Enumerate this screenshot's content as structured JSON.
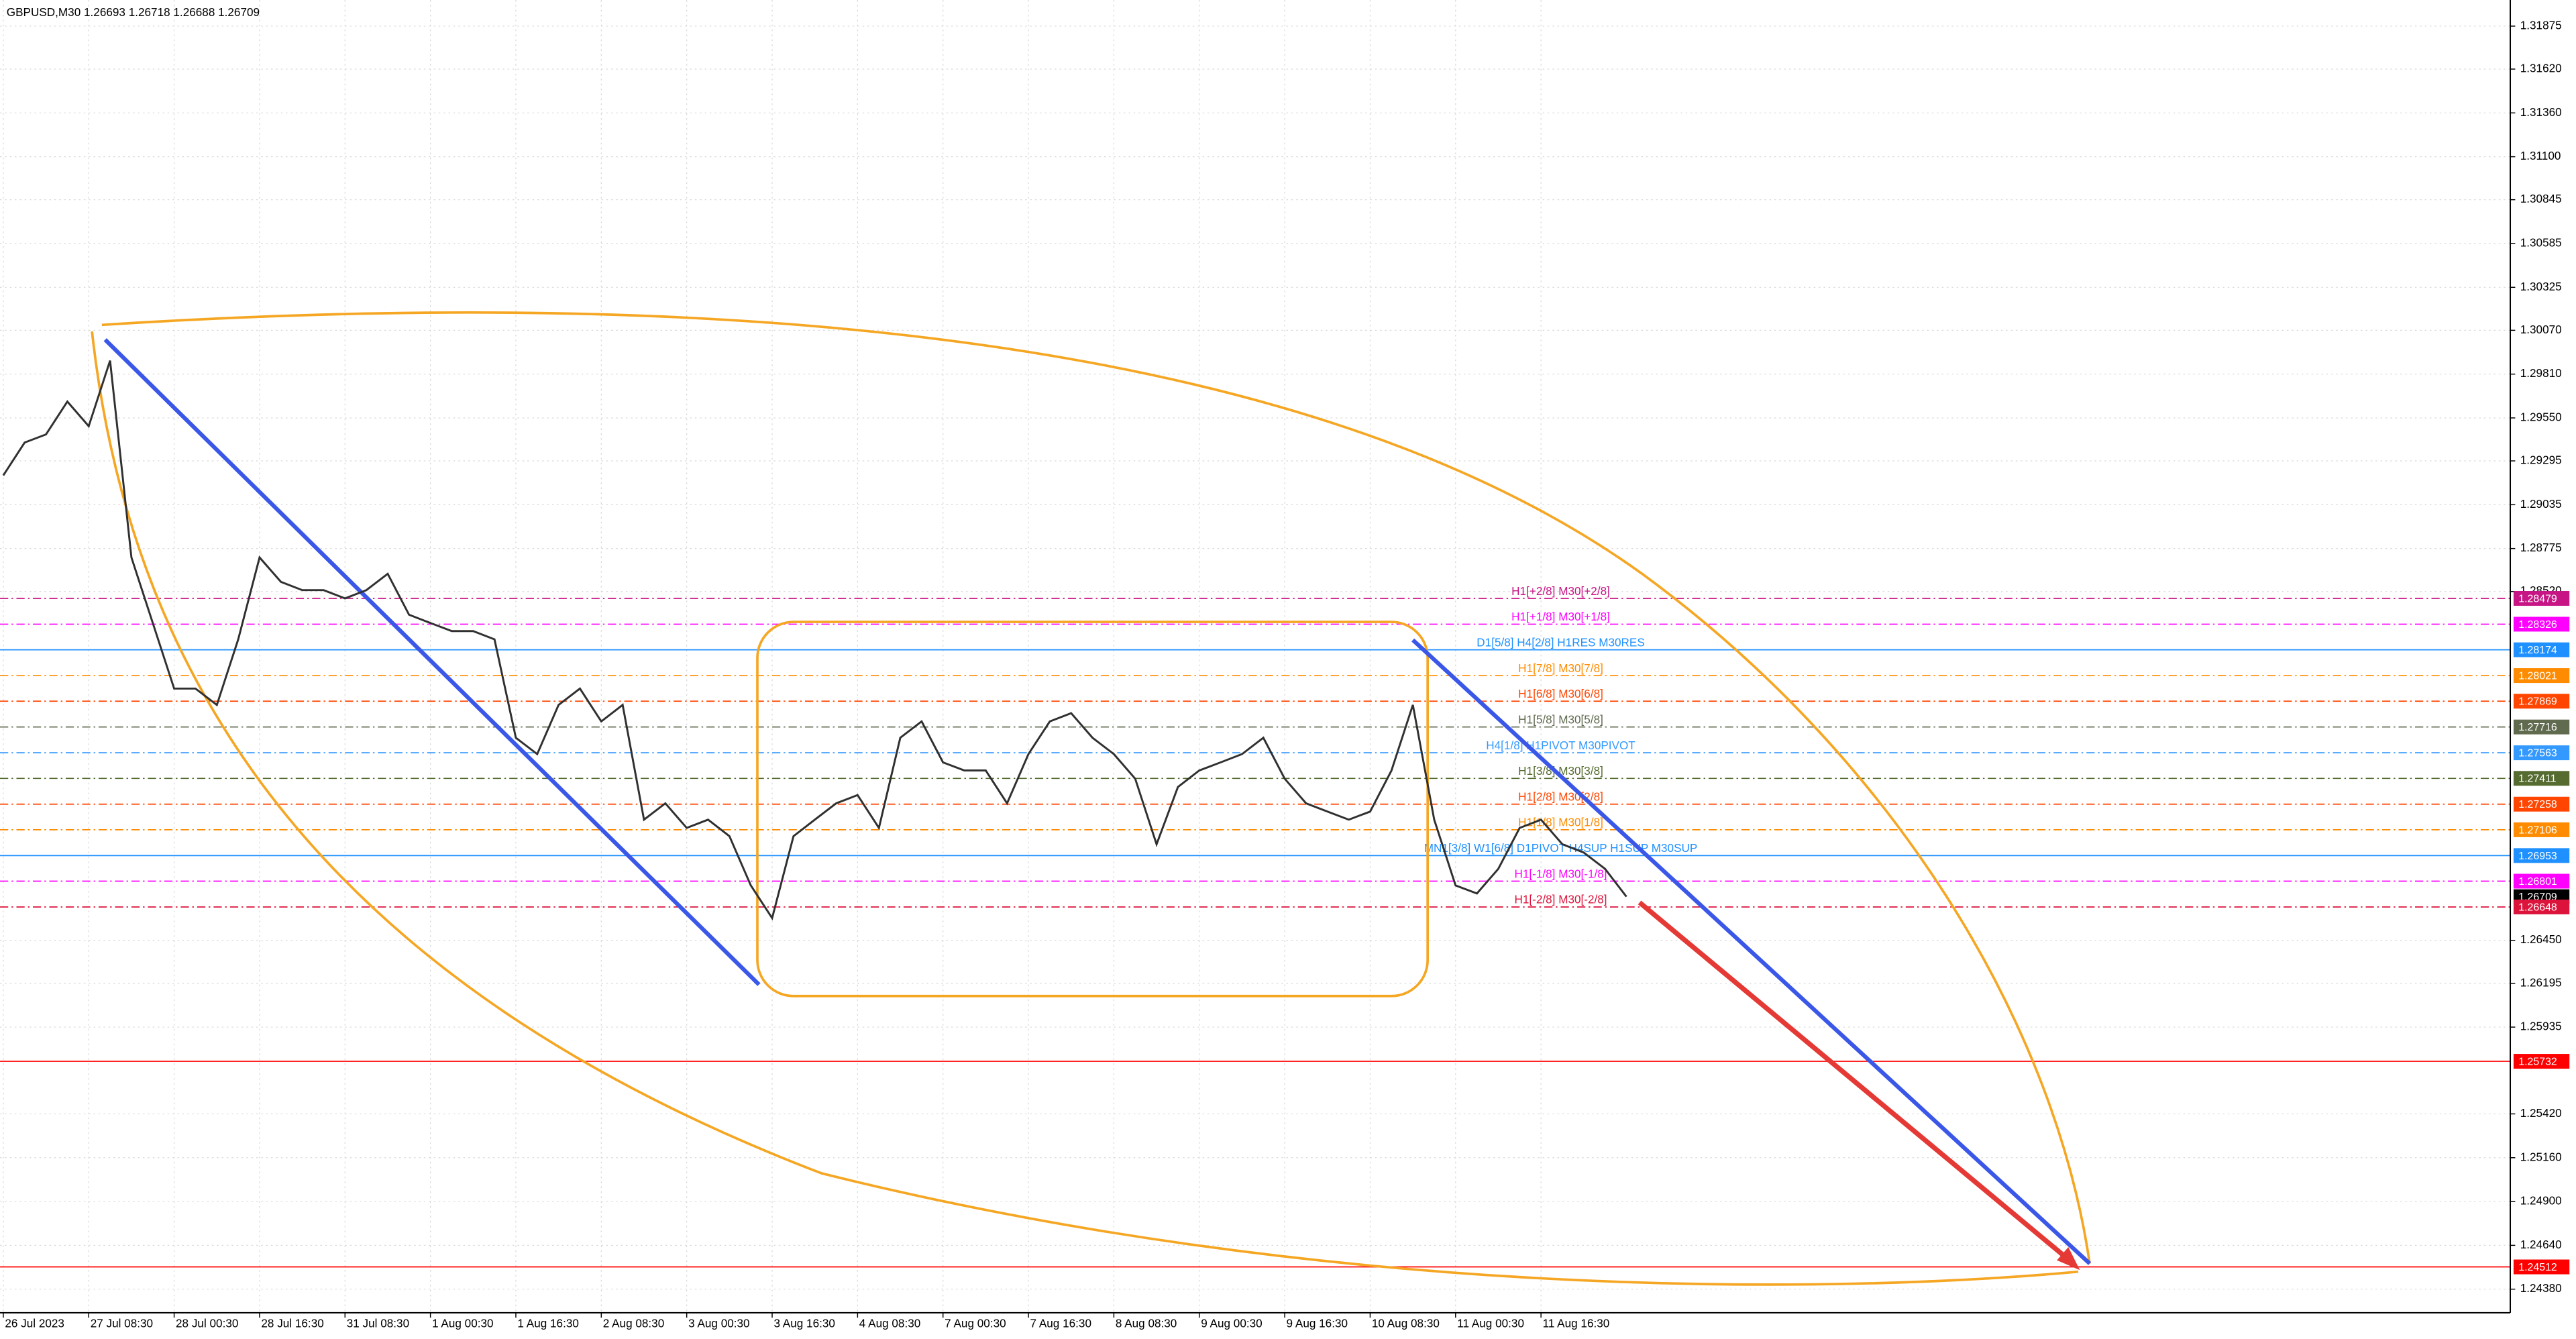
{
  "chart_data": {
    "type": "line",
    "title": "GBPUSD,M30  1.26693 1.26718 1.26688 1.26709",
    "color": "#303030",
    "grid": true,
    "ylim": [
      1.2424,
      1.3203
    ],
    "yticks": [
      1.31875,
      {
        "value": 1.3162,
        "label": "1.31620"
      },
      {
        "value": 1.3136,
        "label": "1.31360"
      },
      {
        "value": 1.311,
        "label": "1.31100"
      },
      1.30845,
      1.30585,
      1.30325,
      {
        "value": 1.3007,
        "label": "1.30070"
      },
      {
        "value": 1.2981,
        "label": "1.29810"
      },
      {
        "value": 1.2955,
        "label": "1.29550"
      },
      1.29295,
      1.29035,
      1.28775,
      {
        "value": 1.2852,
        "label": "1.28520"
      },
      {
        "value": 1.2645,
        "label": "1.26450"
      },
      1.26195,
      1.25935,
      {
        "value": 1.2542,
        "label": "1.25420"
      },
      {
        "value": 1.2516,
        "label": "1.25160"
      },
      {
        "value": 1.249,
        "label": "1.24900"
      },
      {
        "value": 1.2464,
        "label": "1.24640"
      },
      {
        "value": 1.2438,
        "label": "1.24380"
      }
    ],
    "categories": [
      "26 Jul 2023",
      null,
      null,
      null,
      "27 Jul 08:30",
      null,
      null,
      null,
      "28 Jul 00:30",
      null,
      null,
      null,
      "28 Jul 16:30",
      null,
      null,
      null,
      "31 Jul 08:30",
      null,
      null,
      null,
      "1 Aug 00:30",
      null,
      null,
      null,
      "1 Aug 16:30",
      null,
      null,
      null,
      "2 Aug 08:30",
      null,
      null,
      null,
      "3 Aug 00:30",
      null,
      null,
      null,
      "3 Aug 16:30",
      null,
      null,
      null,
      "4 Aug 08:30",
      null,
      null,
      null,
      "7 Aug 00:30",
      null,
      null,
      null,
      "7 Aug 16:30",
      null,
      null,
      null,
      "8 Aug 08:30",
      null,
      null,
      null,
      "9 Aug 00:30",
      null,
      null,
      null,
      "9 Aug 16:30",
      null,
      null,
      null,
      "10 Aug 08:30",
      null,
      null,
      null,
      "11 Aug 00:30",
      null,
      null,
      null,
      "11 Aug 16:30",
      null,
      null,
      null,
      null
    ],
    "values": [
      1.29209,
      1.29404,
      1.29452,
      1.29647,
      1.29501,
      1.2989,
      1.28722,
      1.28333,
      1.27944,
      1.27944,
      1.27847,
      1.28236,
      1.28722,
      1.28577,
      1.28528,
      1.28528,
      1.28479,
      1.28528,
      1.28625,
      1.28382,
      1.28333,
      1.28285,
      1.28285,
      1.28236,
      1.27652,
      1.27555,
      1.27847,
      1.27944,
      1.27749,
      1.27847,
      1.27166,
      1.27263,
      1.27117,
      1.27166,
      1.27068,
      1.26776,
      1.26582,
      1.27068,
      1.27166,
      1.27263,
      1.27312,
      1.27117,
      1.27652,
      1.27749,
      1.27506,
      1.27458,
      1.27458,
      1.27263,
      1.27555,
      1.27749,
      1.27798,
      1.27652,
      1.27555,
      1.27409,
      1.2702,
      1.2736,
      1.27458,
      1.27506,
      1.27555,
      1.27652,
      1.27409,
      1.27263,
      1.27214,
      1.27166,
      1.27214,
      1.27458,
      1.27847,
      1.27166,
      1.26776,
      1.26728,
      1.26874,
      1.27117,
      1.27166,
      1.2702,
      1.26971,
      1.26874,
      1.26709
    ],
    "levels": [
      {
        "value": 1.28479,
        "color": "#c71585",
        "line": "dashdot",
        "text": "H1[+2/8] M30[+2/8]"
      },
      {
        "value": 1.28326,
        "color": "#ff00ff",
        "line": "dashdot",
        "text": "H1[+1/8] M30[+1/8]"
      },
      {
        "value": 1.28174,
        "color": "#1e90ff",
        "line": "solid",
        "text": "D1[5/8] H4[2/8] H1RES M30RES"
      },
      {
        "value": 1.28021,
        "color": "#ff8c00",
        "line": "dashdot",
        "text": "H1[7/8] M30[7/8]"
      },
      {
        "value": 1.27869,
        "color": "#ff4500",
        "line": "dashdot",
        "text": "H1[6/8] M30[6/8]"
      },
      {
        "value": 1.27716,
        "color": "#5f6a4f",
        "line": "dashdot",
        "text": "H1[5/8] M30[5/8]"
      },
      {
        "value": 1.27563,
        "color": "#3399ff",
        "line": "dashdot",
        "text": "H4[1/8] H1PIVOT M30PIVOT"
      },
      {
        "value": 1.27411,
        "color": "#556b2f",
        "line": "dashdot",
        "text": "H1[3/8] M30[3/8]"
      },
      {
        "value": 1.27258,
        "color": "#ff4500",
        "line": "dashdot",
        "text": "H1[2/8] M30[2/8]"
      },
      {
        "value": 1.27106,
        "color": "#ff8c00",
        "line": "dashdot",
        "text": "H1[1/8] M30[1/8]"
      },
      {
        "value": 1.26953,
        "color": "#1e90ff",
        "line": "solid",
        "text": "MN1[3/8] W1[6/8] D1PIVOT H4SUP H1SUP M30SUP"
      },
      {
        "value": 1.26801,
        "color": "#ff00ff",
        "line": "dashdot",
        "text": "H1[-1/8] M30[-1/8]"
      },
      {
        "value": 1.26709,
        "color": "#000000",
        "line": "none"
      },
      {
        "value": 1.26648,
        "color": "#dc143c",
        "line": "dashdot",
        "text": "H1[-2/8] M30[-2/8]"
      },
      {
        "value": 1.25732,
        "color": "#ff0000",
        "line": "solid"
      },
      {
        "value": 1.24512,
        "color": "#ff0000",
        "line": "solid"
      }
    ]
  }
}
